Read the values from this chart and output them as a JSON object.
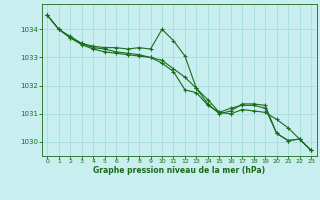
{
  "background_color": "#c8eef0",
  "grid_color": "#aadddd",
  "line_color": "#1a6b1a",
  "xlabel": "Graphe pression niveau de la mer (hPa)",
  "xlim": [
    -0.5,
    23.5
  ],
  "ylim": [
    1029.5,
    1034.9
  ],
  "yticks": [
    1030,
    1031,
    1032,
    1033,
    1034
  ],
  "xticks": [
    0,
    1,
    2,
    3,
    4,
    5,
    6,
    7,
    8,
    9,
    10,
    11,
    12,
    13,
    14,
    15,
    16,
    17,
    18,
    19,
    20,
    21,
    22,
    23
  ],
  "series": [
    {
      "x": [
        0,
        1,
        2,
        3,
        4,
        5,
        6,
        7,
        8,
        9,
        10,
        11,
        12,
        13,
        14,
        15,
        16,
        17,
        18,
        19,
        20,
        21,
        22,
        23
      ],
      "y": [
        1034.5,
        1034.0,
        1033.7,
        1033.5,
        1033.4,
        1033.35,
        1033.35,
        1033.3,
        1033.35,
        1033.3,
        1034.0,
        1033.6,
        1033.05,
        1031.9,
        1031.35,
        1031.0,
        1031.1,
        1031.35,
        1031.35,
        1031.3,
        1030.3,
        1030.05,
        1030.1,
        1029.7
      ]
    },
    {
      "x": [
        0,
        1,
        2,
        3,
        4,
        5,
        6,
        7,
        8,
        9,
        10,
        11,
        12,
        13,
        14,
        15,
        16,
        17,
        18,
        19,
        20,
        21,
        22,
        23
      ],
      "y": [
        1034.5,
        1034.0,
        1033.7,
        1033.45,
        1033.3,
        1033.2,
        1033.15,
        1033.1,
        1033.05,
        1033.0,
        1032.9,
        1032.6,
        1032.3,
        1031.9,
        1031.5,
        1031.05,
        1031.0,
        1031.15,
        1031.1,
        1031.05,
        1030.8,
        1030.5,
        1030.1,
        1029.7
      ]
    },
    {
      "x": [
        0,
        1,
        2,
        3,
        4,
        5,
        6,
        7,
        8,
        9,
        10,
        11,
        12,
        13,
        14,
        15,
        16,
        17,
        18,
        19,
        20,
        21,
        22,
        23
      ],
      "y": [
        1034.5,
        1034.0,
        1033.75,
        1033.5,
        1033.35,
        1033.3,
        1033.2,
        1033.15,
        1033.1,
        1033.0,
        1032.8,
        1032.5,
        1031.85,
        1031.75,
        1031.3,
        1031.05,
        1031.2,
        1031.3,
        1031.3,
        1031.2,
        1030.3,
        1030.05,
        1030.1,
        1029.7
      ]
    }
  ]
}
